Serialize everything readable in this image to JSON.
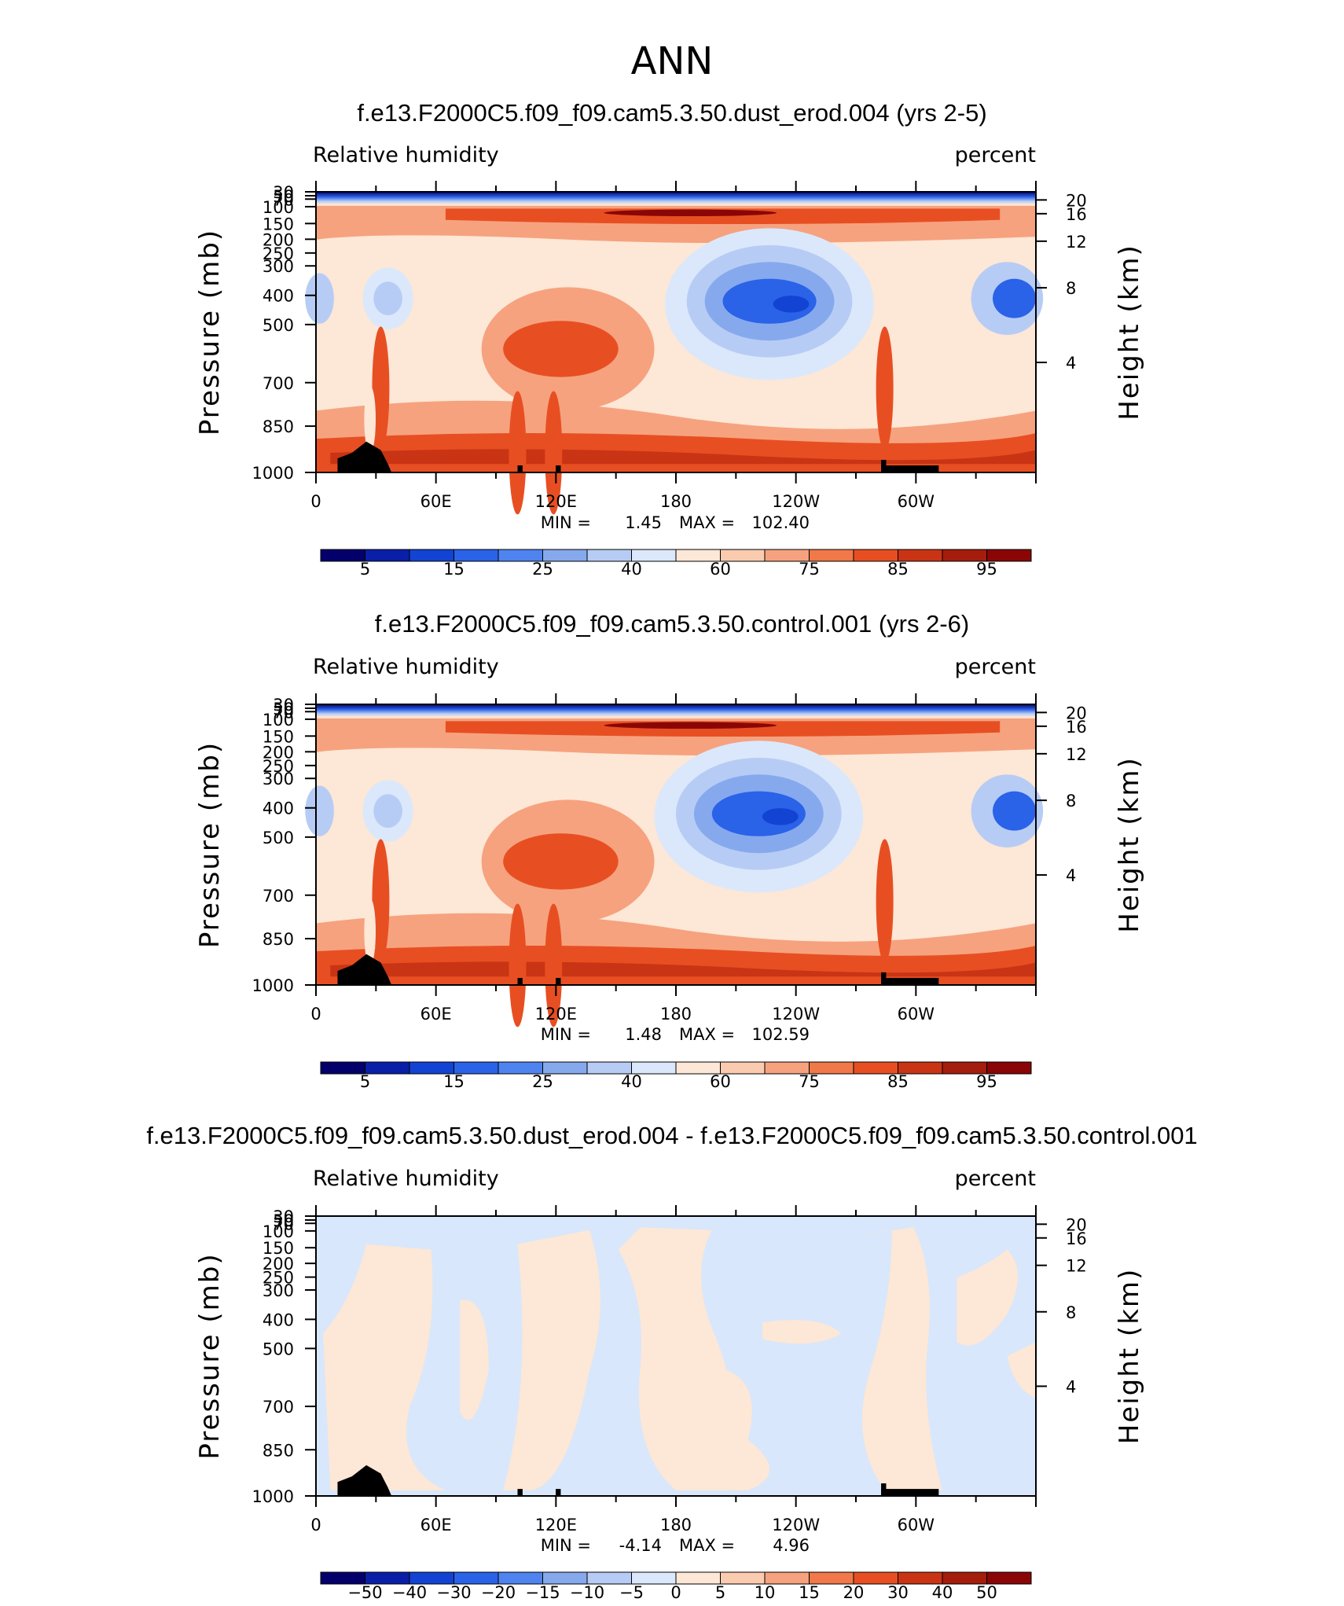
{
  "figure_title": "ANN",
  "chart_data": [
    {
      "type": "heatmap",
      "title": "f.e13.F2000C5.f09_f09.cam5.3.50.dust_erod.004 (yrs 2-5)",
      "variable": "Relative humidity",
      "units": "percent",
      "ylabel_left": "Pressure (mb)",
      "ylabel_right": "Height (km)",
      "x_ticks": [
        "0",
        "60E",
        "120E",
        "180",
        "120W",
        "60W"
      ],
      "y_ticks_pressure": [
        "30",
        "50",
        "70",
        "100",
        "150",
        "200",
        "250",
        "300",
        "400",
        "500",
        "700",
        "850",
        "1000"
      ],
      "y_ticks_height": [
        "20",
        "16",
        "12",
        "8",
        "4"
      ],
      "min_label": "MIN =",
      "min_value": "1.45",
      "max_label": "MAX =",
      "max_value": "102.40",
      "colorbar_labels": [
        "5",
        "15",
        "25",
        "40",
        "60",
        "75",
        "85",
        "95"
      ]
    },
    {
      "type": "heatmap",
      "title": "f.e13.F2000C5.f09_f09.cam5.3.50.control.001 (yrs 2-6)",
      "variable": "Relative humidity",
      "units": "percent",
      "ylabel_left": "Pressure (mb)",
      "ylabel_right": "Height (km)",
      "x_ticks": [
        "0",
        "60E",
        "120E",
        "180",
        "120W",
        "60W"
      ],
      "y_ticks_pressure": [
        "30",
        "50",
        "70",
        "100",
        "150",
        "200",
        "250",
        "300",
        "400",
        "500",
        "700",
        "850",
        "1000"
      ],
      "y_ticks_height": [
        "20",
        "16",
        "12",
        "8",
        "4"
      ],
      "min_label": "MIN =",
      "min_value": "1.48",
      "max_label": "MAX =",
      "max_value": "102.59",
      "colorbar_labels": [
        "5",
        "15",
        "25",
        "40",
        "60",
        "75",
        "85",
        "95"
      ]
    },
    {
      "type": "heatmap",
      "title": "f.e13.F2000C5.f09_f09.cam5.3.50.dust_erod.004 - f.e13.F2000C5.f09_f09.cam5.3.50.control.001",
      "variable": "Relative humidity",
      "units": "percent",
      "ylabel_left": "Pressure (mb)",
      "ylabel_right": "Height (km)",
      "x_ticks": [
        "0",
        "60E",
        "120E",
        "180",
        "120W",
        "60W"
      ],
      "y_ticks_pressure": [
        "30",
        "50",
        "70",
        "100",
        "150",
        "200",
        "250",
        "300",
        "400",
        "500",
        "700",
        "850",
        "1000"
      ],
      "y_ticks_height": [
        "20",
        "16",
        "12",
        "8",
        "4"
      ],
      "min_label": "MIN =",
      "min_value": "-4.14",
      "max_label": "MAX =",
      "max_value": "4.96",
      "colorbar_labels": [
        "−50",
        "−40",
        "−30",
        "−20",
        "−15",
        "−10",
        "−5",
        "0",
        "5",
        "10",
        "15",
        "20",
        "30",
        "40",
        "50"
      ]
    }
  ],
  "colors": {
    "colorbar": [
      "#04006b",
      "#0a1fa8",
      "#1243d2",
      "#2a62e8",
      "#4f84f0",
      "#86a9ee",
      "#b7ccf5",
      "#dbe8fb",
      "#fde7d6",
      "#fbcbb0",
      "#f6a27f",
      "#f07849",
      "#e74f22",
      "#c93414",
      "#a41d0d",
      "#8a0606"
    ],
    "diff_pos": "#fde7d6",
    "diff_neg": "#d8e7fb",
    "topography": "#000000"
  }
}
